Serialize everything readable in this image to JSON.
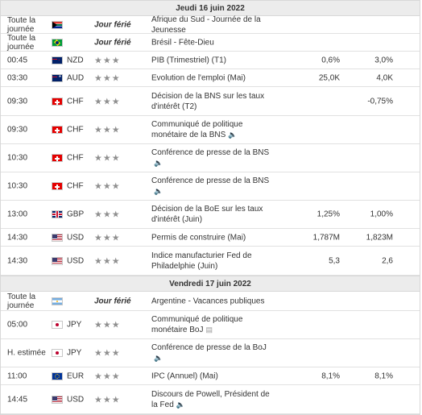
{
  "days": [
    {
      "date": "Jeudi 16 juin 2022",
      "rows": [
        {
          "h": 22,
          "time": "Toute la journée",
          "flag": "za",
          "flag_icon": "south-africa-flag-icon",
          "holiday": "Jour férié",
          "event": "Afrique du Sud - Journée de la Jeunesse"
        },
        {
          "h": 22,
          "time": "Toute la journée",
          "flag": "br",
          "flag_icon": "brazil-flag-icon",
          "holiday": "Jour férié",
          "event": "Brésil - Fête-Dieu"
        },
        {
          "h": 22,
          "time": "00:45",
          "flag": "nz",
          "flag_icon": "new-zealand-flag-icon",
          "currency": "NZD",
          "stars": "★★★",
          "event": "PIB (Trimestriel) (T1)",
          "actual": "0,6%",
          "forecast": "3,0%"
        },
        {
          "h": 22,
          "time": "03:30",
          "flag": "au",
          "flag_icon": "australia-flag-icon",
          "currency": "AUD",
          "stars": "★★★",
          "event": "Evolution de l'emploi (Mai)",
          "actual": "25,0K",
          "forecast": "4,0K"
        },
        {
          "h": 36,
          "time": "09:30",
          "flag": "ch",
          "flag_icon": "switzerland-flag-icon",
          "currency": "CHF",
          "stars": "★★★",
          "event": "Décision de la BNS sur les taux d'intérêt (T2)",
          "actual": "",
          "forecast": "-0,75%"
        },
        {
          "h": 35,
          "time": "09:30",
          "flag": "ch",
          "flag_icon": "switzerland-flag-icon",
          "currency": "CHF",
          "stars": "★★★",
          "event": "Communiqué de politique monétaire de la BNS",
          "event_icon": "🔈"
        },
        {
          "h": 35,
          "time": "10:30",
          "flag": "ch",
          "flag_icon": "switzerland-flag-icon",
          "currency": "CHF",
          "stars": "★★★",
          "event": "Conférence de presse de la BNS",
          "event_icon": "🔈"
        },
        {
          "h": 35,
          "time": "10:30",
          "flag": "ch",
          "flag_icon": "switzerland-flag-icon",
          "currency": "CHF",
          "stars": "★★★",
          "event": "Conférence de presse de la BNS",
          "event_icon": "🔈"
        },
        {
          "h": 35,
          "time": "13:00",
          "flag": "gb",
          "flag_icon": "uk-flag-icon",
          "currency": "GBP",
          "stars": "★★★",
          "event": "Décision de la BoE sur les taux d'intérêt (Juin)",
          "actual": "1,25%",
          "forecast": "1,00%"
        },
        {
          "h": 22,
          "time": "14:30",
          "flag": "us",
          "flag_icon": "us-flag-icon",
          "currency": "USD",
          "stars": "★★★",
          "event": "Permis de construire (Mai)",
          "actual": "1,787M",
          "forecast": "1,823M"
        },
        {
          "h": 36,
          "time": "14:30",
          "flag": "us",
          "flag_icon": "us-flag-icon",
          "currency": "USD",
          "stars": "★★★",
          "event": "Indice manufacturier Fed de Philadelphie (Juin)",
          "actual": "5,3",
          "forecast": "2,6"
        }
      ]
    },
    {
      "date": "Vendredi 17 juin 2022",
      "rows": [
        {
          "h": 24,
          "time": "Toute la journée",
          "flag": "ar",
          "flag_icon": "argentina-flag-icon",
          "holiday": "Jour férié",
          "event": "Argentine - Vacances publiques"
        },
        {
          "h": 35,
          "time": "05:00",
          "flag": "jp",
          "flag_icon": "japan-flag-icon",
          "currency": "JPY",
          "stars": "★★★",
          "event": "Communiqué de politique monétaire BoJ",
          "event_icon": "▤"
        },
        {
          "h": 35,
          "time": "H. estimée",
          "flag": "jp",
          "flag_icon": "japan-flag-icon",
          "currency": "JPY",
          "stars": "★★★",
          "event": "Conférence de presse de la BoJ",
          "event_icon": "🔈"
        },
        {
          "h": 22,
          "time": "11:00",
          "flag": "eu",
          "flag_icon": "eu-flag-icon",
          "currency": "EUR",
          "stars": "★★★",
          "event": "IPC (Annuel) (Mai)",
          "actual": "8,1%",
          "forecast": "8,1%"
        },
        {
          "h": 36,
          "time": "14:45",
          "flag": "us",
          "flag_icon": "us-flag-icon",
          "currency": "USD",
          "stars": "★★★",
          "event": "Discours de Powell, Président de la Fed",
          "event_icon": "🔈"
        }
      ]
    }
  ]
}
